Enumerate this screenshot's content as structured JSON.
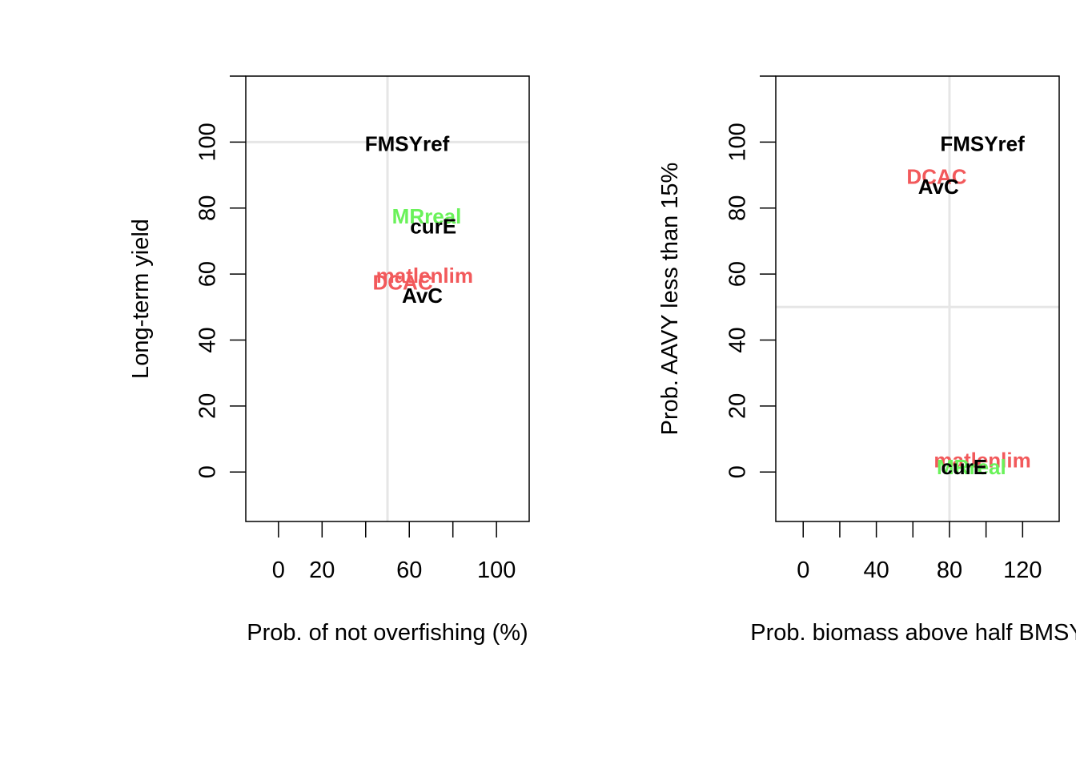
{
  "colors": {
    "black": "#000000",
    "red": "#f2595b",
    "green": "#6af25a",
    "refline": "#e6e6e6"
  },
  "chart_data": [
    {
      "type": "scatter",
      "xlabel": "Prob. of not overfishing (%)",
      "ylabel": "Long-term yield",
      "xlim": [
        -15,
        115
      ],
      "ylim": [
        -15,
        120
      ],
      "xticks": [
        0,
        20,
        40,
        60,
        80,
        100
      ],
      "xtick_labels": [
        "0",
        "20",
        "",
        "60",
        "",
        "100"
      ],
      "yticks": [
        0,
        20,
        40,
        60,
        80,
        100
      ],
      "yticks_extra": [
        120
      ],
      "ytick_labels": [
        "0",
        "20",
        "40",
        "60",
        "80",
        "100"
      ],
      "ref_vline": 50,
      "ref_hline": 100,
      "grid": false,
      "points": [
        {
          "label": "FMSYref",
          "x": 59,
          "y": 99,
          "color": "black"
        },
        {
          "label": "MRreal",
          "x": 68,
          "y": 77,
          "color": "green"
        },
        {
          "label": "curE",
          "x": 71,
          "y": 74,
          "color": "black"
        },
        {
          "label": "matlenlim",
          "x": 67,
          "y": 59,
          "color": "red"
        },
        {
          "label": "DCAC",
          "x": 57,
          "y": 57,
          "color": "red"
        },
        {
          "label": "AvC",
          "x": 66,
          "y": 53,
          "color": "black"
        }
      ]
    },
    {
      "type": "scatter",
      "xlabel": "Prob. biomass above half BMSY",
      "ylabel": "Prob. AAVY less than 15%",
      "xlim": [
        -15,
        140
      ],
      "ylim": [
        -15,
        120
      ],
      "xticks": [
        0,
        20,
        40,
        60,
        80,
        100,
        120
      ],
      "xtick_labels": [
        "0",
        "",
        "40",
        "",
        "80",
        "",
        "120"
      ],
      "yticks": [
        0,
        20,
        40,
        60,
        80,
        100
      ],
      "yticks_extra": [
        120
      ],
      "ytick_labels": [
        "0",
        "20",
        "40",
        "60",
        "80",
        "100"
      ],
      "ref_vline": 80,
      "ref_hline": 50,
      "grid": false,
      "points": [
        {
          "label": "FMSYref",
          "x": 98,
          "y": 99,
          "color": "black"
        },
        {
          "label": "DCAC",
          "x": 73,
          "y": 89,
          "color": "red"
        },
        {
          "label": "AvC",
          "x": 74,
          "y": 86,
          "color": "black"
        },
        {
          "label": "matlenlim",
          "x": 98,
          "y": 3,
          "color": "red"
        },
        {
          "label": "MRreal",
          "x": 92,
          "y": 1,
          "color": "green"
        },
        {
          "label": "curE",
          "x": 88,
          "y": 1,
          "color": "black"
        }
      ]
    }
  ]
}
